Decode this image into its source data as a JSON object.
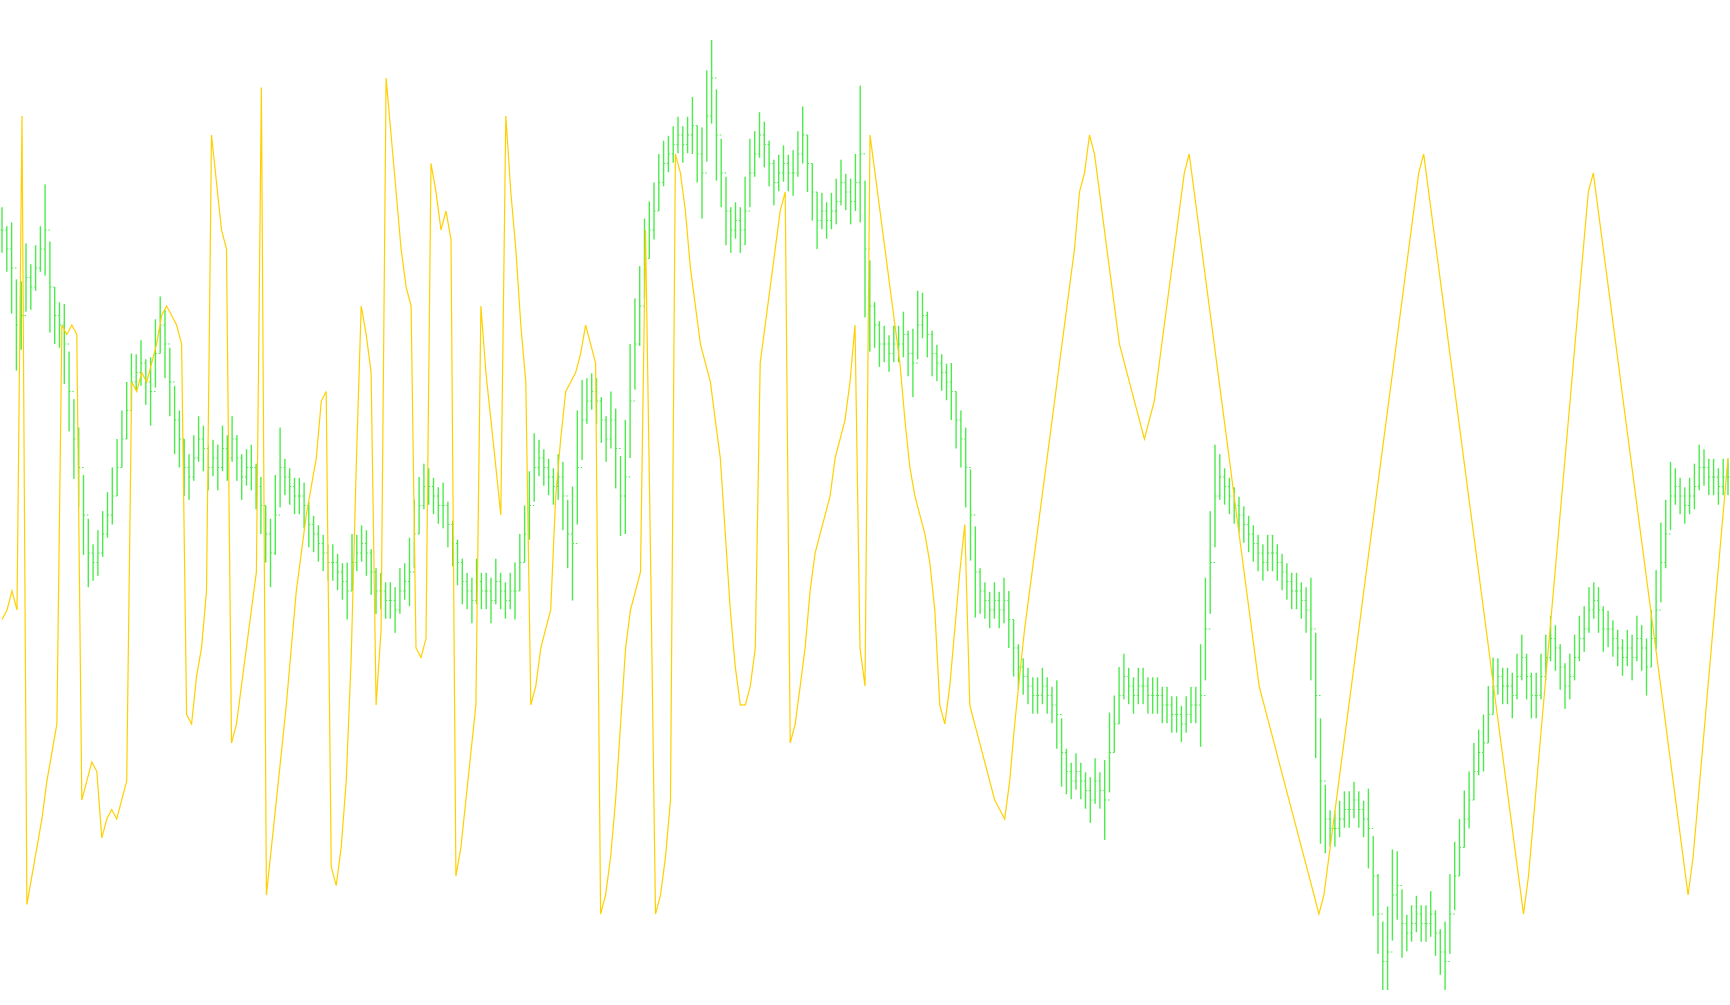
{
  "chart_data": {
    "type": "line",
    "title": "",
    "xlabel": "",
    "ylabel": "",
    "grid": false,
    "legend": "none",
    "ylim": [
      0,
      1
    ],
    "series": [
      {
        "role": "price_bars",
        "style": "ohlc-ticks",
        "color": "#4CEB4C",
        "values": [
          0.8,
          0.78,
          0.76,
          0.7,
          0.71,
          0.75,
          0.74,
          0.76,
          0.78,
          0.8,
          0.74,
          0.71,
          0.7,
          0.68,
          0.63,
          0.58,
          0.55,
          0.5,
          0.46,
          0.45,
          0.46,
          0.48,
          0.5,
          0.52,
          0.55,
          0.58,
          0.61,
          0.64,
          0.65,
          0.66,
          0.64,
          0.63,
          0.67,
          0.7,
          0.68,
          0.64,
          0.6,
          0.58,
          0.55,
          0.54,
          0.56,
          0.58,
          0.57,
          0.55,
          0.56,
          0.55,
          0.57,
          0.56,
          0.58,
          0.56,
          0.54,
          0.55,
          0.55,
          0.53,
          0.51,
          0.48,
          0.46,
          0.5,
          0.55,
          0.54,
          0.53,
          0.52,
          0.52,
          0.51,
          0.49,
          0.48,
          0.47,
          0.46,
          0.45,
          0.45,
          0.44,
          0.43,
          0.42,
          0.45,
          0.46,
          0.47,
          0.46,
          0.44,
          0.42,
          0.42,
          0.41,
          0.41,
          0.4,
          0.42,
          0.43,
          0.44,
          0.48,
          0.51,
          0.53,
          0.53,
          0.52,
          0.51,
          0.51,
          0.49,
          0.47,
          0.45,
          0.43,
          0.42,
          0.41,
          0.43,
          0.42,
          0.42,
          0.41,
          0.43,
          0.42,
          0.41,
          0.42,
          0.42,
          0.45,
          0.48,
          0.51,
          0.55,
          0.56,
          0.55,
          0.54,
          0.53,
          0.54,
          0.52,
          0.48,
          0.47,
          0.55,
          0.6,
          0.62,
          0.63,
          0.62,
          0.6,
          0.58,
          0.6,
          0.57,
          0.52,
          0.54,
          0.62,
          0.68,
          0.72,
          0.77,
          0.8,
          0.82,
          0.85,
          0.87,
          0.88,
          0.89,
          0.9,
          0.89,
          0.9,
          0.91,
          0.88,
          0.86,
          0.92,
          0.96,
          0.9,
          0.86,
          0.82,
          0.8,
          0.81,
          0.8,
          0.82,
          0.86,
          0.88,
          0.9,
          0.89,
          0.87,
          0.85,
          0.86,
          0.87,
          0.86,
          0.86,
          0.88,
          0.9,
          0.87,
          0.84,
          0.81,
          0.82,
          0.81,
          0.82,
          0.83,
          0.85,
          0.84,
          0.83,
          0.85,
          0.88,
          0.78,
          0.72,
          0.7,
          0.68,
          0.68,
          0.67,
          0.68,
          0.68,
          0.69,
          0.67,
          0.66,
          0.7,
          0.71,
          0.69,
          0.67,
          0.66,
          0.65,
          0.64,
          0.63,
          0.6,
          0.58,
          0.55,
          0.5,
          0.44,
          0.42,
          0.41,
          0.4,
          0.41,
          0.4,
          0.41,
          0.39,
          0.36,
          0.34,
          0.33,
          0.32,
          0.31,
          0.31,
          0.32,
          0.31,
          0.3,
          0.29,
          0.25,
          0.23,
          0.22,
          0.23,
          0.22,
          0.21,
          0.2,
          0.22,
          0.21,
          0.2,
          0.25,
          0.28,
          0.31,
          0.33,
          0.32,
          0.31,
          0.32,
          0.32,
          0.31,
          0.31,
          0.31,
          0.3,
          0.3,
          0.29,
          0.29,
          0.28,
          0.29,
          0.3,
          0.3,
          0.31,
          0.38,
          0.45,
          0.52,
          0.54,
          0.53,
          0.52,
          0.51,
          0.5,
          0.49,
          0.48,
          0.47,
          0.46,
          0.45,
          0.46,
          0.46,
          0.45,
          0.44,
          0.43,
          0.42,
          0.42,
          0.41,
          0.4,
          0.38,
          0.31,
          0.22,
          0.18,
          0.17,
          0.17,
          0.18,
          0.19,
          0.19,
          0.2,
          0.19,
          0.18,
          0.17,
          0.12,
          0.08,
          0.03,
          0.04,
          0.1,
          0.11,
          0.07,
          0.06,
          0.07,
          0.08,
          0.07,
          0.07,
          0.08,
          0.06,
          0.04,
          0.03,
          0.08,
          0.12,
          0.15,
          0.18,
          0.2,
          0.23,
          0.25,
          0.26,
          0.29,
          0.32,
          0.33,
          0.32,
          0.32,
          0.31,
          0.33,
          0.35,
          0.33,
          0.31,
          0.31,
          0.33,
          0.35,
          0.37,
          0.36,
          0.34,
          0.32,
          0.33,
          0.35,
          0.37,
          0.38,
          0.4,
          0.41,
          0.4,
          0.38,
          0.38,
          0.37,
          0.36,
          0.35,
          0.36,
          0.35,
          0.37,
          0.36,
          0.34,
          0.37,
          0.4,
          0.45,
          0.48,
          0.52,
          0.53,
          0.52,
          0.51,
          0.52,
          0.53,
          0.55,
          0.55,
          0.54,
          0.54,
          0.53,
          0.54,
          0.54
        ]
      },
      {
        "role": "oscillator",
        "style": "line",
        "color": "#FFD000",
        "values": [
          0.39,
          0.4,
          0.42,
          0.4,
          0.92,
          0.09,
          0.12,
          0.15,
          0.18,
          0.22,
          0.25,
          0.28,
          0.7,
          0.69,
          0.7,
          0.69,
          0.2,
          0.22,
          0.24,
          0.23,
          0.16,
          0.18,
          0.19,
          0.18,
          0.2,
          0.22,
          0.64,
          0.63,
          0.65,
          0.64,
          0.66,
          0.68,
          0.71,
          0.72,
          0.71,
          0.7,
          0.68,
          0.29,
          0.28,
          0.33,
          0.36,
          0.42,
          0.9,
          0.85,
          0.8,
          0.78,
          0.26,
          0.28,
          0.32,
          0.36,
          0.4,
          0.44,
          0.95,
          0.1,
          0.15,
          0.2,
          0.25,
          0.3,
          0.36,
          0.42,
          0.46,
          0.5,
          0.53,
          0.56,
          0.62,
          0.63,
          0.13,
          0.11,
          0.15,
          0.22,
          0.35,
          0.55,
          0.72,
          0.69,
          0.65,
          0.3,
          0.38,
          0.96,
          0.9,
          0.84,
          0.78,
          0.74,
          0.72,
          0.36,
          0.35,
          0.37,
          0.87,
          0.84,
          0.8,
          0.82,
          0.79,
          0.12,
          0.15,
          0.2,
          0.25,
          0.3,
          0.72,
          0.65,
          0.6,
          0.55,
          0.5,
          0.92,
          0.84,
          0.78,
          0.7,
          0.64,
          0.3,
          0.32,
          0.36,
          0.38,
          0.4,
          0.52,
          0.58,
          0.63,
          0.64,
          0.65,
          0.67,
          0.7,
          0.68,
          0.66,
          0.08,
          0.1,
          0.14,
          0.2,
          0.28,
          0.36,
          0.4,
          0.42,
          0.44,
          0.8,
          0.46,
          0.08,
          0.1,
          0.14,
          0.2,
          0.88,
          0.86,
          0.82,
          0.76,
          0.72,
          0.68,
          0.66,
          0.64,
          0.6,
          0.56,
          0.48,
          0.4,
          0.34,
          0.3,
          0.3,
          0.32,
          0.36,
          0.66,
          0.7,
          0.74,
          0.78,
          0.82,
          0.84,
          0.26,
          0.28,
          0.32,
          0.36,
          0.42,
          0.46,
          0.48,
          0.5,
          0.52,
          0.56,
          0.58,
          0.6,
          0.64,
          0.7,
          0.36,
          0.32,
          0.9,
          0.86,
          0.82,
          0.78,
          0.74,
          0.7,
          0.66,
          0.6,
          0.55,
          0.52,
          0.5,
          0.48,
          0.45,
          0.4,
          0.3,
          0.28,
          0.32,
          0.38,
          0.44,
          0.49,
          0.3,
          0.28,
          0.26,
          0.24,
          0.22,
          0.2,
          0.19,
          0.18,
          0.22,
          0.28,
          0.33,
          0.38,
          0.42,
          0.46,
          0.5,
          0.54,
          0.58,
          0.62,
          0.66,
          0.7,
          0.74,
          0.78,
          0.84,
          0.86,
          0.9,
          0.88,
          0.84,
          0.8,
          0.76,
          0.72,
          0.68,
          0.66,
          0.64,
          0.62,
          0.6,
          0.58,
          0.6,
          0.62,
          0.66,
          0.7,
          0.74,
          0.78,
          0.82,
          0.86,
          0.88,
          0.84,
          0.8,
          0.76,
          0.72,
          0.68,
          0.64,
          0.6,
          0.56,
          0.52,
          0.48,
          0.44,
          0.4,
          0.36,
          0.32,
          0.3,
          0.28,
          0.26,
          0.24,
          0.22,
          0.2,
          0.18,
          0.16,
          0.14,
          0.12,
          0.1,
          0.08,
          0.1,
          0.14,
          0.18,
          0.22,
          0.26,
          0.3,
          0.34,
          0.38,
          0.42,
          0.46,
          0.5,
          0.54,
          0.58,
          0.62,
          0.66,
          0.7,
          0.74,
          0.78,
          0.82,
          0.86,
          0.88,
          0.84,
          0.8,
          0.76,
          0.72,
          0.68,
          0.64,
          0.6,
          0.56,
          0.52,
          0.48,
          0.44,
          0.4,
          0.36,
          0.32,
          0.28,
          0.24,
          0.2,
          0.16,
          0.12,
          0.08,
          0.12,
          0.18,
          0.24,
          0.3,
          0.36,
          0.42,
          0.48,
          0.54,
          0.6,
          0.66,
          0.72,
          0.78,
          0.84,
          0.86,
          0.82,
          0.78,
          0.74,
          0.7,
          0.66,
          0.62,
          0.58,
          0.54,
          0.5,
          0.46,
          0.42,
          0.38,
          0.34,
          0.3,
          0.26,
          0.22,
          0.18,
          0.14,
          0.1,
          0.14,
          0.2,
          0.26,
          0.32,
          0.38,
          0.44,
          0.5,
          0.56
        ]
      }
    ]
  }
}
